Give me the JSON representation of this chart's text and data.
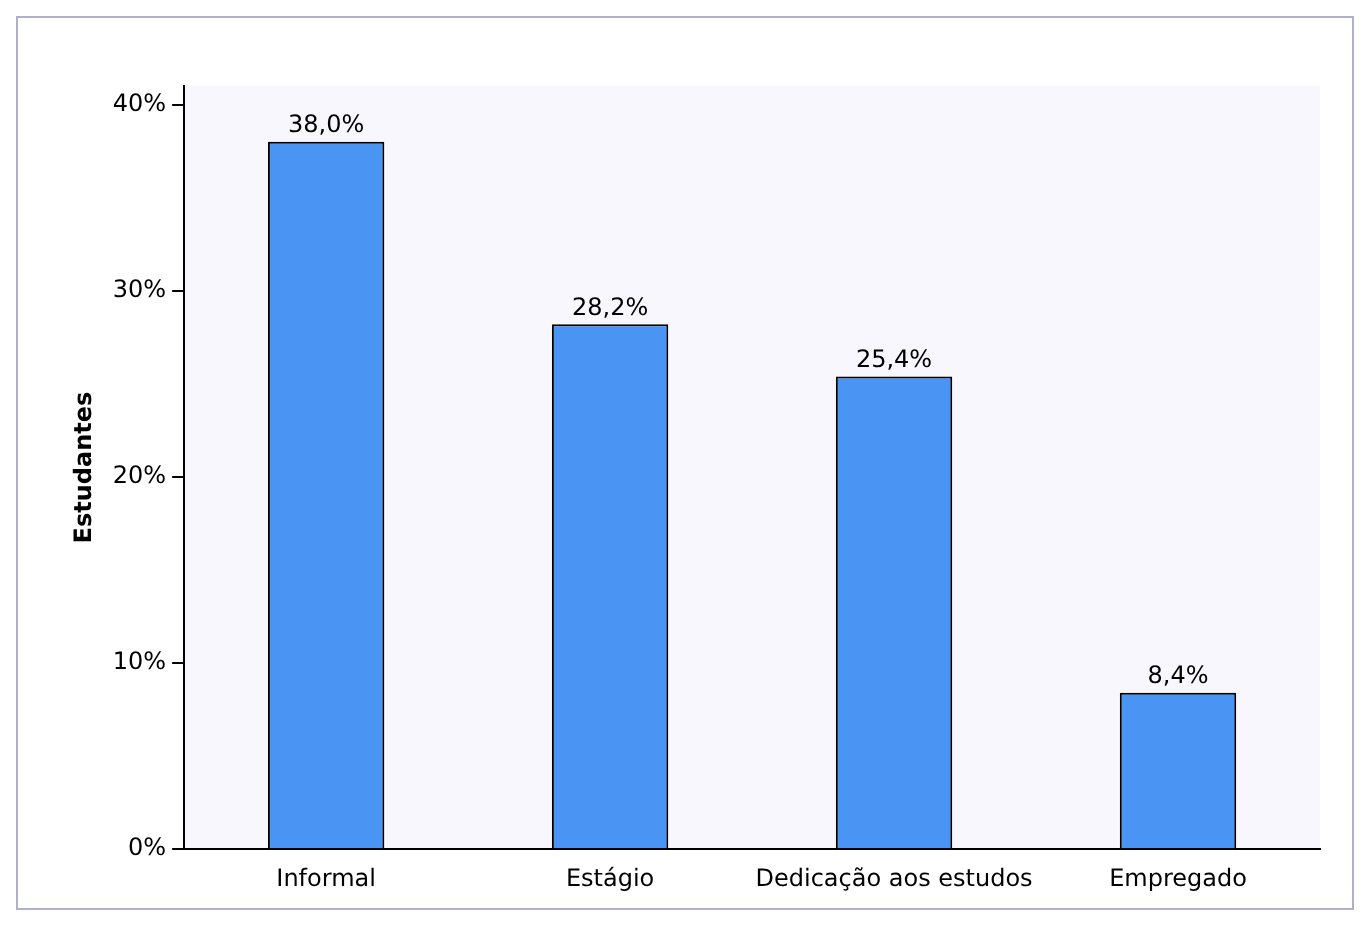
{
  "chart_data": {
    "type": "bar",
    "ylabel": "Estudantes",
    "categories": [
      "Informal",
      "Estágio",
      "Dedicação aos estudos",
      "Empregado"
    ],
    "values": [
      38.0,
      28.2,
      25.4,
      8.4
    ],
    "value_labels": [
      "38,0%",
      "28,2%",
      "25,4%",
      "8,4%"
    ],
    "color": "#4a94f4",
    "ylim": [
      0,
      41
    ],
    "yticks": [
      {
        "value": 0,
        "label": "0%"
      },
      {
        "value": 10,
        "label": "10%"
      },
      {
        "value": 20,
        "label": "20%"
      },
      {
        "value": 30,
        "label": "30%"
      },
      {
        "value": 40,
        "label": "40%"
      }
    ],
    "grid": false,
    "legend": false
  }
}
